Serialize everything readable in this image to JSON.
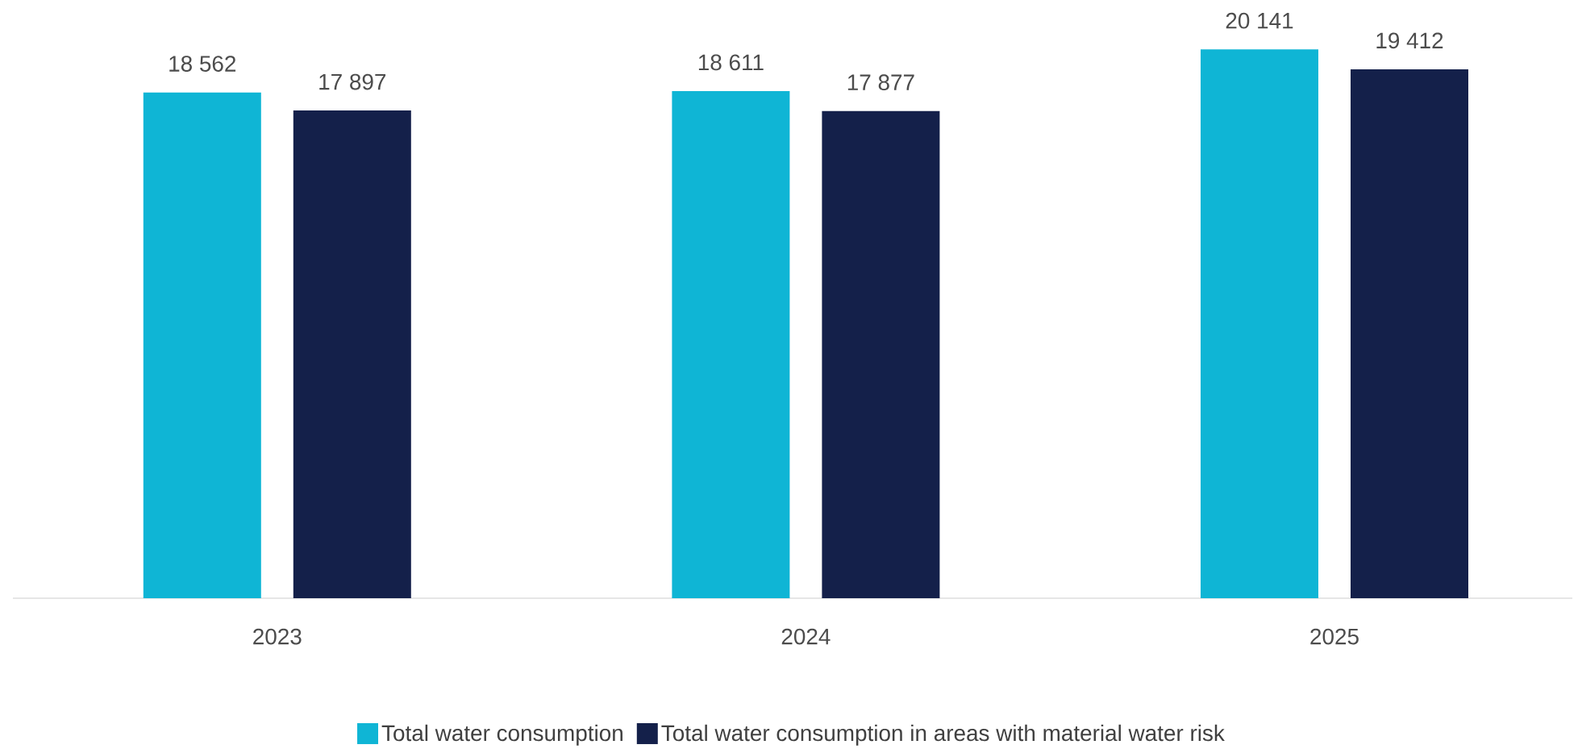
{
  "chart_data": {
    "type": "bar",
    "categories": [
      "2023",
      "2024",
      "2025"
    ],
    "legend": "bottom",
    "series": [
      {
        "name": "Total water consumption",
        "color": "#0fb5d5",
        "values": [
          18562,
          18611,
          20141
        ],
        "value_labels": [
          "18 562",
          "18 611",
          "20 141"
        ]
      },
      {
        "name": "Total water consumption in areas with material water risk",
        "color": "#14204a",
        "values": [
          17897,
          17877,
          19412
        ],
        "value_labels": [
          "17 897",
          "17 877",
          "19 412"
        ]
      }
    ]
  }
}
